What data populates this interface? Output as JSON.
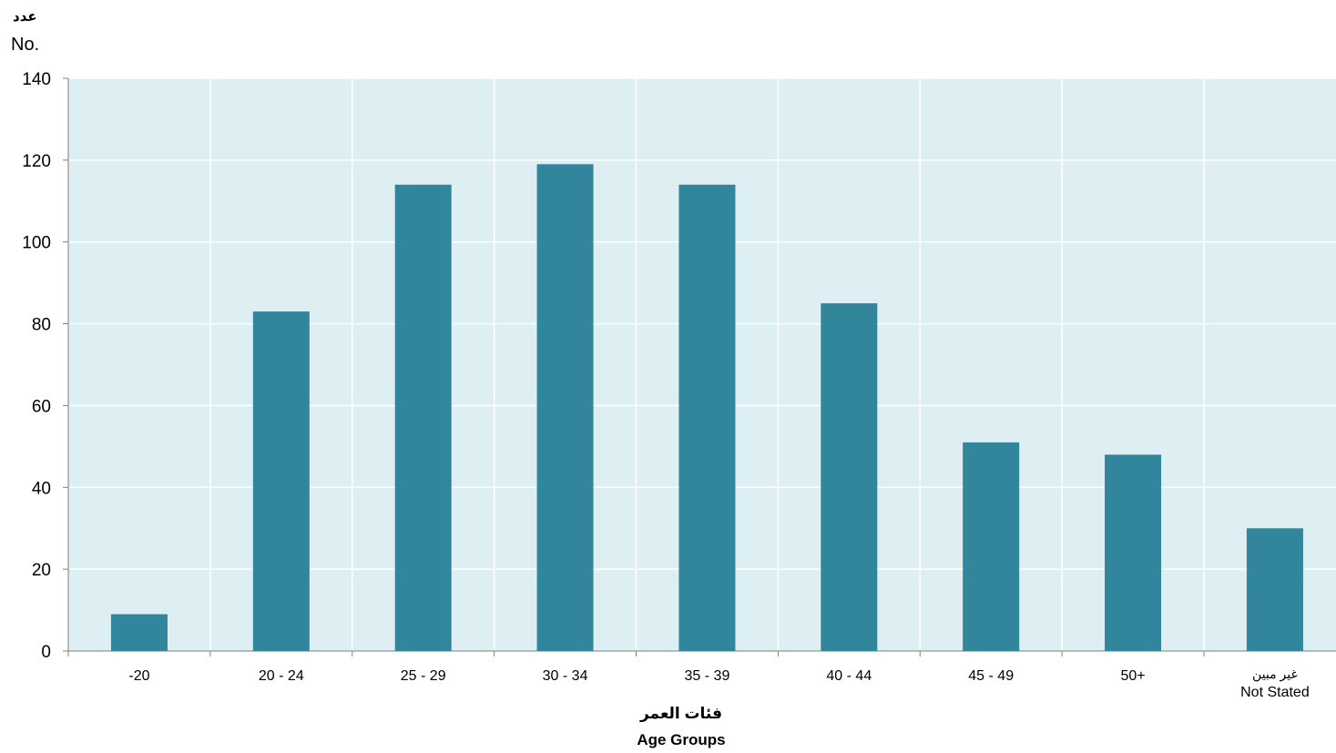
{
  "chart_data": {
    "type": "bar",
    "categories": [
      [
        "-20"
      ],
      [
        "20 - 24"
      ],
      [
        "25 - 29"
      ],
      [
        "30 - 34"
      ],
      [
        "35 - 39"
      ],
      [
        "40 - 44"
      ],
      [
        "45 - 49"
      ],
      [
        "50+"
      ],
      [
        "غير مبين",
        "Not Stated"
      ]
    ],
    "values": [
      9,
      83,
      114,
      119,
      114,
      85,
      51,
      48,
      30
    ],
    "ylim": [
      0,
      140
    ],
    "yticks": [
      0,
      20,
      40,
      60,
      80,
      100,
      120,
      140
    ],
    "ylabel_ar": "عدد",
    "ylabel_en": "No.",
    "xlabel_ar": "فئات العمر",
    "xlabel_en": "Age Groups",
    "grid": true,
    "colors": {
      "bar": "#31869b",
      "plot_bg": "#deeff4",
      "grid": "#ffffff",
      "axis": "#7f7f7f"
    }
  }
}
